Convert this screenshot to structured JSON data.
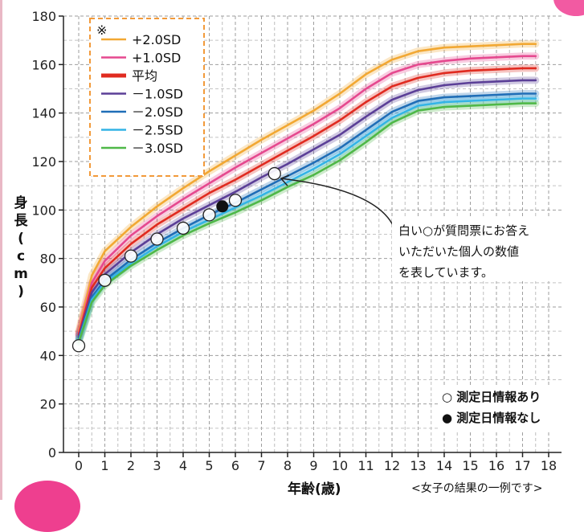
{
  "chart_data": {
    "type": "line",
    "ylabel": "身長(cm)",
    "xlabel": "年齢(歳)",
    "caption": "<女子の結果の一例です>",
    "xlim": [
      0,
      18
    ],
    "ylim": [
      0,
      180
    ],
    "x_ticks": [
      "0",
      "1",
      "2",
      "3",
      "4",
      "5",
      "6",
      "7",
      "8",
      "9",
      "10",
      "11",
      "12",
      "13",
      "14",
      "15",
      "16",
      "17",
      "18"
    ],
    "y_ticks": [
      "0",
      "20",
      "40",
      "60",
      "80",
      "100",
      "120",
      "140",
      "160",
      "180"
    ],
    "grid": true,
    "legend_position": "top-left",
    "legend_mark": "※",
    "x": [
      0,
      0.5,
      1,
      2,
      3,
      4,
      5,
      6,
      7,
      8,
      9,
      10,
      11,
      12,
      13,
      14,
      15,
      16,
      17,
      17.5
    ],
    "series": [
      {
        "name": "+2.0SD",
        "color": "#f2a833",
        "values": [
          50,
          73,
          83,
          93,
          101.5,
          109,
          116,
          122.5,
          129,
          135,
          141,
          148,
          156,
          162,
          165.5,
          167,
          167.5,
          168,
          168.5,
          168.5
        ]
      },
      {
        "name": "+1.0SD",
        "color": "#e5498f",
        "values": [
          49,
          70,
          79,
          89.5,
          97.5,
          104.5,
          111,
          117.5,
          123.5,
          129.5,
          135.5,
          142,
          150,
          156.5,
          160,
          161.5,
          162.5,
          163,
          163.5,
          163.5
        ]
      },
      {
        "name": "平均",
        "color": "#e02b20",
        "values": [
          48.5,
          68,
          76,
          86,
          94,
          100.5,
          107,
          112.5,
          118.5,
          124.5,
          130.5,
          137,
          144.5,
          151,
          154.5,
          156.5,
          157.5,
          158,
          158.5,
          158.5
        ]
      },
      {
        "name": "－1.0SD",
        "color": "#5b3f97",
        "values": [
          47.5,
          66,
          73.5,
          82.5,
          90,
          96.5,
          102,
          107.5,
          113.5,
          119,
          125,
          131,
          138.5,
          145.5,
          149.5,
          151.5,
          152.5,
          153,
          153.5,
          153.5
        ]
      },
      {
        "name": "－2.0SD",
        "color": "#1f6eb7",
        "values": [
          46.5,
          64,
          71,
          79.5,
          86.5,
          92.5,
          98,
          103,
          108.5,
          114,
          119.5,
          125.5,
          133,
          140.5,
          145,
          146.5,
          147,
          147.5,
          148,
          148
        ]
      },
      {
        "name": "－2.5SD",
        "color": "#34b4e5",
        "values": [
          46,
          63,
          70,
          78,
          85,
          91,
          96,
          101,
          106,
          111.5,
          117,
          123,
          130.5,
          138,
          143,
          144.5,
          145,
          145.5,
          146,
          146
        ]
      },
      {
        "name": "－3.0SD",
        "color": "#4fb848",
        "values": [
          45.5,
          62,
          69,
          77,
          83.5,
          89.5,
          94.5,
          99,
          104,
          109.5,
          114.5,
          120.5,
          128,
          136,
          141,
          142.5,
          143,
          143.5,
          144,
          144
        ]
      }
    ],
    "points_measured": [
      {
        "x": 0,
        "y": 44
      },
      {
        "x": 1,
        "y": 71
      },
      {
        "x": 2,
        "y": 81
      },
      {
        "x": 3,
        "y": 88
      },
      {
        "x": 4,
        "y": 92.5
      },
      {
        "x": 5,
        "y": 98
      },
      {
        "x": 6,
        "y": 104
      },
      {
        "x": 7.5,
        "y": 115
      }
    ],
    "points_unmeasured": [
      {
        "x": 5.5,
        "y": 101.5
      }
    ],
    "annotation": {
      "lines": [
        "白い○が質問票にお答え",
        "いただいた個人の数値",
        "を表しています。"
      ],
      "target": {
        "x": 7.75,
        "y": 113
      }
    },
    "point_key": {
      "measured": "○ 測定日情報あり",
      "unmeasured": "● 測定日情報なし"
    }
  }
}
